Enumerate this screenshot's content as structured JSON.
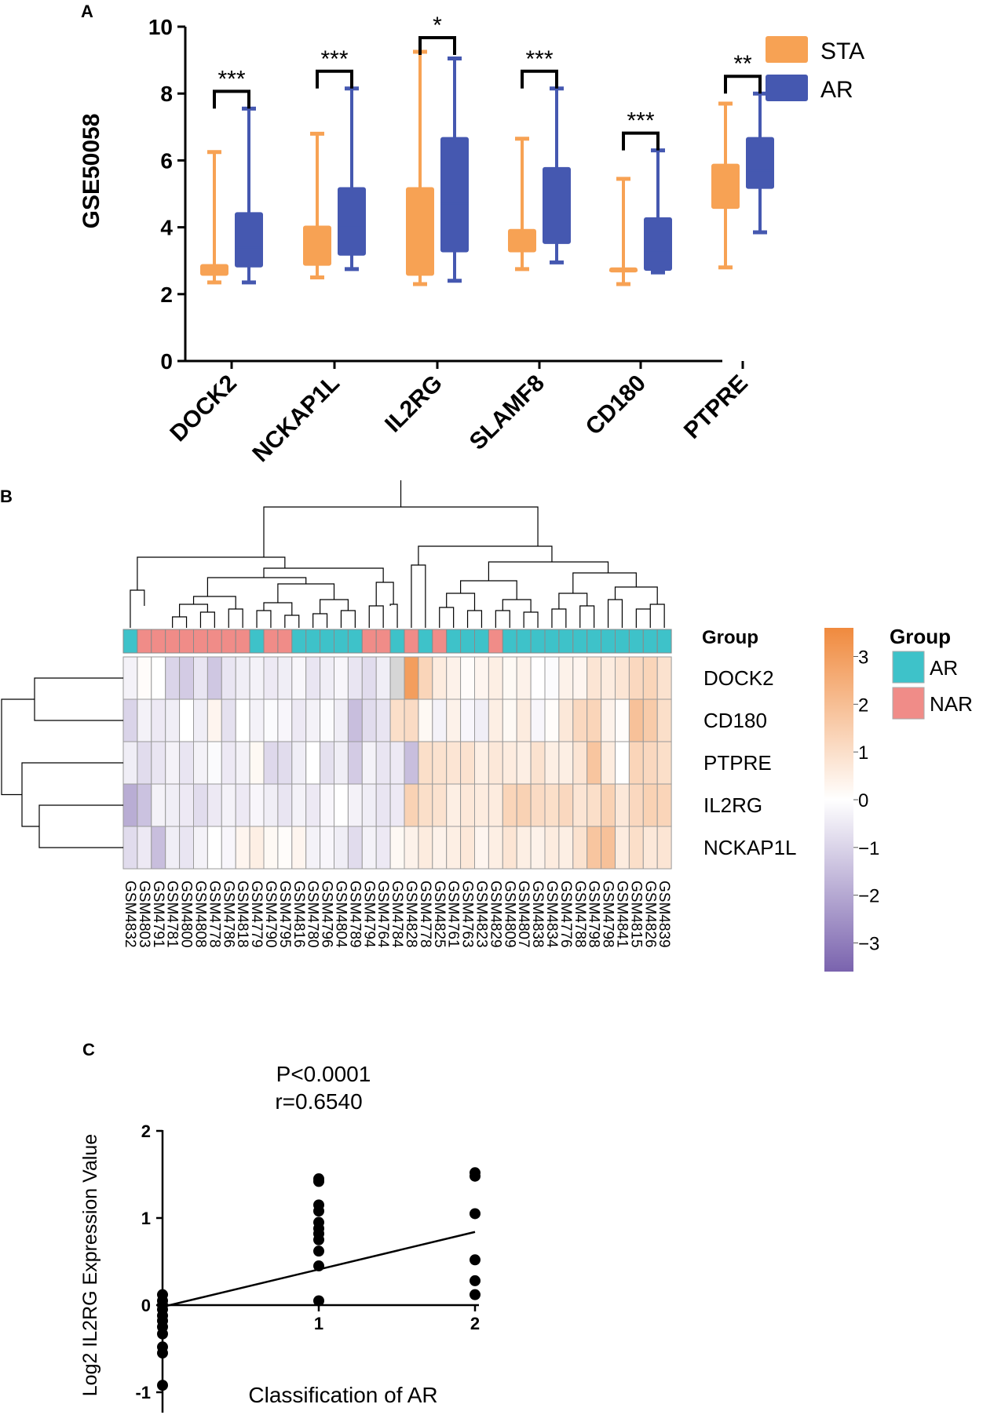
{
  "panel_labels": {
    "a": "A",
    "b": "B",
    "c": "C"
  },
  "colors": {
    "sta": "#F7A254",
    "ar_box": "#4558B0",
    "ar_group": "#3EC2C9",
    "nar_group": "#F08C88",
    "heat_low": "#7A63AE",
    "heat_mid": "#FFFFFF",
    "heat_high": "#F08A3E",
    "axis": "#000000"
  },
  "chart_data": [
    {
      "type": "box",
      "panel": "A",
      "ylabel": "GSE50058",
      "ylim": [
        0,
        10
      ],
      "yticks": [
        "0",
        "2",
        "4",
        "6",
        "8",
        "10"
      ],
      "categories": [
        "DOCK2",
        "NCKAP1L",
        "IL2RG",
        "SLAMF8",
        "CD180",
        "PTPRE"
      ],
      "legend": [
        "STA",
        "AR"
      ],
      "significance": [
        "***",
        "***",
        "*",
        "***",
        "***",
        "**"
      ],
      "series": [
        {
          "name": "STA",
          "boxes": [
            {
              "min": 2.35,
              "q1": 2.55,
              "median": 2.7,
              "q3": 2.9,
              "max": 6.25
            },
            {
              "min": 2.5,
              "q1": 2.85,
              "median": 3.3,
              "q3": 4.05,
              "max": 6.8
            },
            {
              "min": 2.3,
              "q1": 2.55,
              "median": 3.5,
              "q3": 5.2,
              "max": 9.25
            },
            {
              "min": 2.75,
              "q1": 3.25,
              "median": 3.6,
              "q3": 3.95,
              "max": 6.65
            },
            {
              "min": 2.3,
              "q1": 2.65,
              "median": 2.7,
              "q3": 2.8,
              "max": 5.45
            },
            {
              "min": 2.8,
              "q1": 4.55,
              "median": 5.2,
              "q3": 5.9,
              "max": 7.7
            }
          ]
        },
        {
          "name": "AR",
          "boxes": [
            {
              "min": 2.35,
              "q1": 2.8,
              "median": 3.4,
              "q3": 4.45,
              "max": 7.55
            },
            {
              "min": 2.75,
              "q1": 3.15,
              "median": 4.0,
              "q3": 5.2,
              "max": 8.15
            },
            {
              "min": 2.4,
              "q1": 3.25,
              "median": 4.7,
              "q3": 6.7,
              "max": 9.05
            },
            {
              "min": 2.95,
              "q1": 3.5,
              "median": 4.6,
              "q3": 5.8,
              "max": 8.15
            },
            {
              "min": 2.65,
              "q1": 2.7,
              "median": 3.3,
              "q3": 4.3,
              "max": 6.3
            },
            {
              "min": 3.85,
              "q1": 5.15,
              "median": 5.7,
              "q3": 6.7,
              "max": 8.0
            }
          ]
        }
      ]
    },
    {
      "type": "heatmap",
      "panel": "B",
      "group_title": "Group",
      "legend_title": "Group",
      "legend_groups": [
        "AR",
        "NAR"
      ],
      "colorbar_ticks": [
        "3",
        "2",
        "1",
        "0",
        "−1",
        "−2",
        "−3"
      ],
      "colorbar_range": [
        -3.6,
        3.6
      ],
      "rows": [
        "DOCK2",
        "CD180",
        "PTPRE",
        "IL2RG",
        "NCKAP1L"
      ],
      "columns": [
        "GSM4832",
        "GSM4803",
        "GSM4791",
        "GSM4781",
        "GSM4800",
        "GSM4808",
        "GSM4778",
        "GSM4786",
        "GSM4818",
        "GSM4779",
        "GSM4790",
        "GSM4795",
        "GSM4816",
        "GSM4780",
        "GSM4796",
        "GSM4804",
        "GSM4789",
        "GSM4794",
        "GSM4764",
        "GSM4784",
        "GSM4828",
        "GSM4778",
        "GSM4825",
        "GSM4761",
        "GSM4763",
        "GSM4823",
        "GSM4829",
        "GSM4809",
        "GSM4807",
        "GSM4838",
        "GSM4834",
        "GSM4776",
        "GSM4788",
        "GSM4798",
        "GSM4798",
        "GSM4841",
        "GSM4815",
        "GSM4826",
        "GSM4839"
      ],
      "groups": [
        "AR",
        "NAR",
        "NAR",
        "NAR",
        "NAR",
        "NAR",
        "NAR",
        "NAR",
        "NAR",
        "AR",
        "NAR",
        "NAR",
        "AR",
        "AR",
        "AR",
        "AR",
        "AR",
        "NAR",
        "NAR",
        "AR",
        "NAR",
        "AR",
        "NAR",
        "AR",
        "AR",
        "AR",
        "NAR",
        "AR",
        "AR",
        "AR",
        "AR",
        "AR",
        "AR",
        "AR",
        "AR",
        "AR",
        "AR",
        "AR",
        "AR"
      ],
      "values": [
        [
          -0.3,
          0.1,
          0.0,
          -1.0,
          -1.2,
          -0.6,
          -1.3,
          -0.6,
          -0.4,
          -0.3,
          -0.5,
          -0.4,
          -0.2,
          -0.6,
          -0.4,
          -0.2,
          -0.6,
          -0.8,
          -0.4,
          null,
          3.0,
          1.3,
          0.6,
          0.4,
          0.1,
          0.3,
          0.5,
          0.2,
          0.4,
          0.0,
          -0.1,
          0.4,
          0.3,
          0.8,
          0.6,
          0.8,
          1.2,
          1.3,
          0.9
        ],
        [
          -1.0,
          -0.3,
          -0.5,
          -0.4,
          0.0,
          -0.4,
          0.3,
          -0.7,
          0.0,
          -0.3,
          -0.1,
          -0.2,
          -0.5,
          -0.3,
          -0.1,
          -0.4,
          -1.5,
          -0.8,
          -0.6,
          1.0,
          1.1,
          0.2,
          -0.3,
          0.4,
          -0.2,
          -0.4,
          0.5,
          0.2,
          0.6,
          -0.2,
          0.1,
          0.7,
          1.2,
          1.3,
          0.4,
          0.1,
          1.9,
          1.6,
          1.0
        ],
        [
          -0.4,
          -0.8,
          -0.6,
          -0.3,
          -0.6,
          -0.3,
          -0.1,
          -0.5,
          -0.3,
          0.2,
          -0.9,
          -0.8,
          -0.4,
          0.0,
          -0.7,
          -0.4,
          -1.2,
          -0.3,
          -0.6,
          -0.5,
          -1.5,
          1.0,
          0.9,
          0.8,
          0.9,
          0.5,
          0.7,
          0.6,
          0.5,
          0.9,
          0.5,
          0.5,
          0.8,
          1.8,
          0.6,
          0.0,
          1.3,
          1.2,
          1.0
        ],
        [
          -1.9,
          -1.4,
          -0.3,
          -0.4,
          -0.5,
          -0.8,
          -0.5,
          -0.3,
          -0.5,
          -0.2,
          -0.4,
          -0.6,
          -0.3,
          -0.5,
          -0.2,
          0.0,
          -0.3,
          -0.4,
          -0.6,
          -0.5,
          1.4,
          1.0,
          0.9,
          0.5,
          0.7,
          0.6,
          0.6,
          1.3,
          1.4,
          1.1,
          1.0,
          1.2,
          0.8,
          1.0,
          1.4,
          0.7,
          1.2,
          1.4,
          1.3
        ],
        [
          -0.8,
          -0.5,
          -1.5,
          -0.4,
          -0.6,
          -0.3,
          0.0,
          -0.2,
          0.3,
          0.5,
          0.2,
          0.1,
          0.3,
          -0.3,
          -0.2,
          -0.4,
          -0.8,
          -0.3,
          -0.5,
          0.2,
          0.4,
          0.6,
          0.4,
          0.5,
          0.7,
          0.3,
          0.5,
          0.8,
          0.5,
          0.4,
          0.6,
          0.5,
          0.9,
          1.8,
          1.9,
          0.6,
          1.0,
          0.7,
          0.8
        ]
      ]
    },
    {
      "type": "scatter",
      "panel": "C",
      "annotation_p": "P<0.0001",
      "annotation_r": "r=0.6540",
      "xlabel": "Classification of AR",
      "ylabel": "Log2 IL2RG Expression Value",
      "xticks": [
        "1",
        "2"
      ],
      "yticks": [
        "-1",
        "0",
        "1",
        "2"
      ],
      "xlim": [
        0,
        2
      ],
      "ylim": [
        -1,
        2
      ],
      "x": [
        0,
        0,
        0,
        0,
        0,
        0,
        0,
        0,
        0,
        0,
        0,
        1,
        1,
        1,
        1,
        1,
        1,
        1,
        1,
        1,
        1,
        1,
        2,
        2,
        2,
        2,
        2,
        2
      ],
      "y": [
        0.12,
        0.05,
        0.0,
        -0.05,
        -0.12,
        -0.18,
        -0.25,
        -0.33,
        -0.48,
        -0.55,
        -0.92,
        1.45,
        1.42,
        1.15,
        1.08,
        0.95,
        0.88,
        0.82,
        0.75,
        0.62,
        0.45,
        0.05,
        1.52,
        1.48,
        1.05,
        0.52,
        0.28,
        0.12
      ],
      "fit_line": {
        "x0": 0,
        "y0": -0.02,
        "x1": 2,
        "y1": 0.84
      }
    }
  ]
}
